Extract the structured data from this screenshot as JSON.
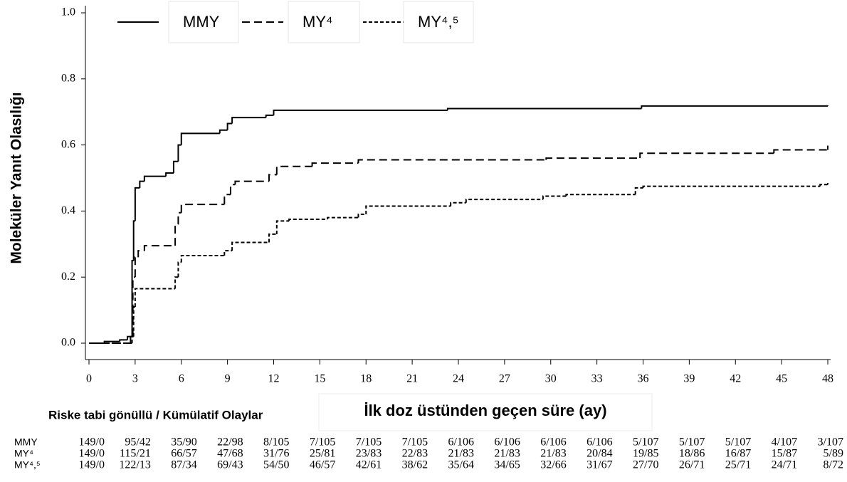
{
  "chart_data": {
    "type": "step",
    "y_label": "Moleküler Yanıt Olasılığı",
    "x_label": "İlk doz üstünden geçen süre (ay)",
    "xlim": [
      0,
      48
    ],
    "xticks": [
      0,
      3,
      6,
      9,
      12,
      15,
      18,
      21,
      24,
      27,
      30,
      33,
      36,
      39,
      42,
      45,
      48
    ],
    "ylim": [
      0,
      1
    ],
    "yticks": [
      {
        "value": 0,
        "label": "0.0"
      },
      {
        "value": 0.2,
        "label": "0.2"
      },
      {
        "value": 0.4,
        "label": "0.4"
      },
      {
        "value": 0.6,
        "label": "0.6"
      },
      {
        "value": 0.8,
        "label": "0.8"
      },
      {
        "value": 1,
        "label": "1.0"
      }
    ],
    "series": [
      {
        "name": "MMY",
        "color": "#000000",
        "line_style": "solid",
        "x": [
          0,
          1,
          2,
          2.5,
          2.8,
          2.9,
          3,
          3.3,
          3.6,
          5,
          5.5,
          5.8,
          6,
          8.5,
          9,
          9.3,
          11.5,
          12,
          23.3,
          35.9,
          48
        ],
        "values": [
          0,
          0.005,
          0.01,
          0.02,
          0.25,
          0.37,
          0.47,
          0.49,
          0.505,
          0.515,
          0.55,
          0.6,
          0.635,
          0.645,
          0.665,
          0.683,
          0.69,
          0.705,
          0.71,
          0.718,
          0.72
        ]
      },
      {
        "name": "MY⁴",
        "color": "#000000",
        "line_style": "dashed",
        "x": [
          0,
          2.7,
          2.85,
          3,
          3.2,
          3.6,
          5.6,
          5.8,
          6,
          8.8,
          9.2,
          9.5,
          11.7,
          12.2,
          14.5,
          17.5,
          29.7,
          35.8,
          44.5,
          48
        ],
        "values": [
          0,
          0.02,
          0.2,
          0.26,
          0.28,
          0.295,
          0.36,
          0.395,
          0.42,
          0.45,
          0.48,
          0.49,
          0.51,
          0.535,
          0.545,
          0.555,
          0.56,
          0.575,
          0.585,
          0.598
        ]
      },
      {
        "name": "MY⁴,⁵",
        "color": "#000000",
        "line_style": "short-dashed",
        "x": [
          0,
          2.8,
          2.9,
          3,
          5.6,
          5.8,
          6,
          8.8,
          9.3,
          11.7,
          12.2,
          13,
          15.5,
          17.5,
          18,
          23.5,
          24.5,
          29.5,
          31,
          35.5,
          36,
          47.5,
          48
        ],
        "values": [
          0,
          0.02,
          0.11,
          0.165,
          0.2,
          0.245,
          0.265,
          0.28,
          0.305,
          0.33,
          0.37,
          0.375,
          0.38,
          0.39,
          0.415,
          0.425,
          0.435,
          0.445,
          0.45,
          0.47,
          0.475,
          0.48,
          0.485
        ]
      }
    ]
  },
  "risk_table": {
    "title": "Riske tabi gönüllü / Kümülatif Olaylar",
    "rows": [
      {
        "label": "MMY",
        "cells": [
          "149/0",
          "95/42",
          "35/90",
          "22/98",
          "8/105",
          "7/105",
          "7/105",
          "7/105",
          "6/106",
          "6/106",
          "6/106",
          "6/106",
          "5/107",
          "5/107",
          "5/107",
          "4/107",
          "3/107"
        ]
      },
      {
        "label": "MY⁴",
        "cells": [
          "149/0",
          "115/21",
          "66/57",
          "47/68",
          "31/76",
          "25/81",
          "23/83",
          "22/83",
          "21/83",
          "21/83",
          "21/83",
          "20/84",
          "19/85",
          "18/86",
          "16/87",
          "15/87",
          "5/89"
        ]
      },
      {
        "label": "MY⁴,⁵",
        "cells": [
          "149/0",
          "122/13",
          "87/34",
          "69/43",
          "54/50",
          "46/57",
          "42/61",
          "38/62",
          "35/64",
          "34/65",
          "32/66",
          "31/67",
          "27/70",
          "26/71",
          "25/71",
          "24/71",
          "8/72"
        ]
      }
    ]
  }
}
